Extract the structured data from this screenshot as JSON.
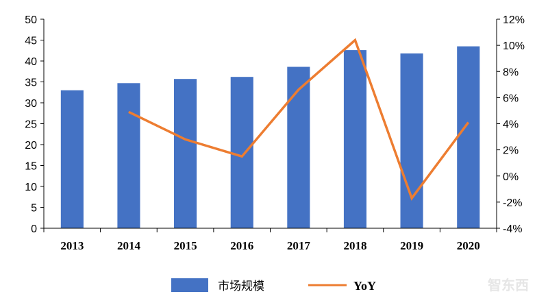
{
  "chart_data": {
    "type": "bar",
    "categories": [
      "2013",
      "2014",
      "2015",
      "2016",
      "2017",
      "2018",
      "2019",
      "2020"
    ],
    "series": [
      {
        "name": "市场规模",
        "type": "bar",
        "axis": "left",
        "color": "#4472C4",
        "values": [
          33.0,
          34.7,
          35.7,
          36.2,
          38.6,
          42.6,
          41.8,
          43.5
        ]
      },
      {
        "name": "YoY",
        "type": "line",
        "axis": "right",
        "color": "#ED7D31",
        "values": [
          null,
          4.9,
          2.8,
          1.5,
          6.6,
          10.4,
          -1.7,
          4.1
        ]
      }
    ],
    "y_left": {
      "min": 0,
      "max": 50,
      "step": 5
    },
    "y_right": {
      "min": -4,
      "max": 12,
      "step": 2,
      "unit": "%"
    },
    "legend": {
      "position": "bottom"
    },
    "grid": false
  },
  "watermark": "智东西"
}
